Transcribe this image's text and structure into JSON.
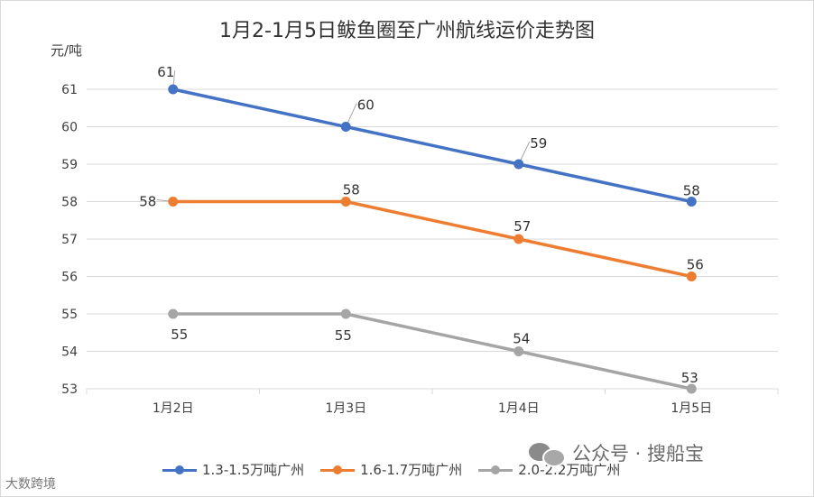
{
  "chart_data": {
    "type": "line",
    "title": "1月2-1月5日鲅鱼圈至广州航线运价走势图",
    "ylabel": "元/吨",
    "xlabel": "",
    "categories": [
      "1月2日",
      "1月3日",
      "1月4日",
      "1月5日"
    ],
    "ylim": [
      53,
      61
    ],
    "yticks": [
      53,
      54,
      55,
      56,
      57,
      58,
      59,
      60,
      61
    ],
    "grid": true,
    "legend_position": "bottom",
    "series": [
      {
        "name": "1.3-1.5万吨广州",
        "values": [
          61,
          60,
          59,
          58
        ],
        "color": "#4472c4"
      },
      {
        "name": "1.6-1.7万吨广州",
        "values": [
          58,
          58,
          57,
          56
        ],
        "color": "#ed7d31"
      },
      {
        "name": "2.0-2.2万吨广州",
        "values": [
          55,
          55,
          54,
          53
        ],
        "color": "#a5a5a5"
      }
    ]
  },
  "watermark": {
    "text": "公众号 · 搜船宝",
    "icon": "wechat-icon"
  },
  "corner_mark": "大数跨境"
}
